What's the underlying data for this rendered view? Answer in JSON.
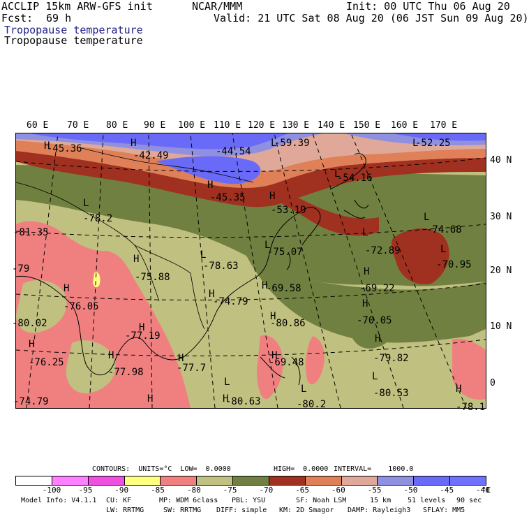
{
  "header": {
    "model": "ACCLIP 15km ARW-GFS init",
    "org": "NCAR/MMM",
    "init": "Init: 00 UTC Thu 06 Aug 20",
    "fcst_label": "Fcst:",
    "fcst_value": "69 h",
    "valid": "Valid: 21 UTC Sat 08 Aug 20 (06 JST Sun 09 Aug 20)",
    "field_title": "Tropopause temperature",
    "field_subtitle": "Tropopause temperature"
  },
  "axes": {
    "lon_labels": [
      "60 E",
      "70 E",
      "80 E",
      "90 E",
      "100 E",
      "110 E",
      "120 E",
      "130 E",
      "140 E",
      "150 E",
      "160 E",
      "170 E"
    ],
    "lat_labels": [
      "40 N",
      "30 N",
      "20 N",
      "10 N",
      "0"
    ]
  },
  "map_labels": [
    {
      "text": "H",
      "kind": "H"
    },
    {
      "text": "-45.36",
      "kind": "v"
    },
    {
      "text": "H",
      "kind": "H"
    },
    {
      "text": "-42.49",
      "kind": "v"
    },
    {
      "text": "-44.54",
      "kind": "v"
    },
    {
      "text": "L",
      "kind": "L"
    },
    {
      "text": "-59.39",
      "kind": "v"
    },
    {
      "text": "L",
      "kind": "L"
    },
    {
      "text": "-52.25",
      "kind": "v"
    },
    {
      "text": "H",
      "kind": "H"
    },
    {
      "text": "-45.35",
      "kind": "v"
    },
    {
      "text": "L",
      "kind": "L"
    },
    {
      "text": "-54.16",
      "kind": "v"
    },
    {
      "text": "H",
      "kind": "H"
    },
    {
      "text": "-53.19",
      "kind": "v"
    },
    {
      "text": "L",
      "kind": "L"
    },
    {
      "text": "-78.2",
      "kind": "v"
    },
    {
      "text": "-81.35",
      "kind": "v"
    },
    {
      "text": "L",
      "kind": "L"
    },
    {
      "text": "-74.68",
      "kind": "v"
    },
    {
      "text": "L",
      "kind": "L"
    },
    {
      "text": "-75.07",
      "kind": "v"
    },
    {
      "text": "L",
      "kind": "L"
    },
    {
      "text": "-72.89",
      "kind": "v"
    },
    {
      "text": "L",
      "kind": "L"
    },
    {
      "text": "-70.95",
      "kind": "v"
    },
    {
      "text": "-79",
      "kind": "v"
    },
    {
      "text": "H",
      "kind": "H"
    },
    {
      "text": "-75.88",
      "kind": "v"
    },
    {
      "text": "L",
      "kind": "L"
    },
    {
      "text": "-78.63",
      "kind": "v"
    },
    {
      "text": "H",
      "kind": "H"
    },
    {
      "text": "-69.58",
      "kind": "v"
    },
    {
      "text": "H",
      "kind": "H"
    },
    {
      "text": "-69.22",
      "kind": "v"
    },
    {
      "text": "H",
      "kind": "H"
    },
    {
      "text": "-76.05",
      "kind": "v"
    },
    {
      "text": "H",
      "kind": "H"
    },
    {
      "text": "-74.79",
      "kind": "v"
    },
    {
      "text": "H",
      "kind": "H"
    },
    {
      "text": "-70.05",
      "kind": "v"
    },
    {
      "text": "H",
      "kind": "H"
    },
    {
      "text": "-80.86",
      "kind": "v"
    },
    {
      "text": "-80.02",
      "kind": "v"
    },
    {
      "text": "H",
      "kind": "H"
    },
    {
      "text": "-77.19",
      "kind": "v"
    },
    {
      "text": "H",
      "kind": "H"
    },
    {
      "text": "-76.25",
      "kind": "v"
    },
    {
      "text": "H",
      "kind": "H"
    },
    {
      "text": "-79.82",
      "kind": "v"
    },
    {
      "text": "H",
      "kind": "H"
    },
    {
      "text": "-77.98",
      "kind": "v"
    },
    {
      "text": "H",
      "kind": "H"
    },
    {
      "text": "-77.7",
      "kind": "v"
    },
    {
      "text": "H",
      "kind": "H"
    },
    {
      "text": "-69.48",
      "kind": "v"
    },
    {
      "text": "L",
      "kind": "L"
    },
    {
      "text": "-80.53",
      "kind": "v"
    },
    {
      "text": "-74.79",
      "kind": "v"
    },
    {
      "text": "H",
      "kind": "H"
    },
    {
      "text": "H",
      "kind": "H"
    },
    {
      "text": "L",
      "kind": "L"
    },
    {
      "text": "-80.63",
      "kind": "v"
    },
    {
      "text": "L",
      "kind": "L"
    },
    {
      "text": "-80.2",
      "kind": "v"
    },
    {
      "text": "H",
      "kind": "H"
    },
    {
      "text": "-78.1",
      "kind": "v"
    }
  ],
  "contours": {
    "units_line": "CONTOURS:  UNITS=°C  LOW=  0.0000",
    "high": "HIGH=  0.0000",
    "interval": "INTERVAL=    1000.0"
  },
  "colorbar": {
    "colors": [
      "#ffffff",
      "#ff80ff",
      "#f050e0",
      "#ffff80",
      "#f08080",
      "#c0c080",
      "#708040",
      "#a03020",
      "#e08058",
      "#e0a898",
      "#9090e0",
      "#6a6af8",
      "#7070ff"
    ],
    "ticks": [
      "-100",
      "-95",
      "-90",
      "-85",
      "-80",
      "-75",
      "-70",
      "-65",
      "-60",
      "-55",
      "-50",
      "-45",
      "-40"
    ],
    "unit": "°C"
  },
  "model_info": {
    "line1": [
      "Model Info: V4.1.1",
      "CU: KF",
      "MP: WDM 6class",
      "PBL: YSU",
      "SF: Noah LSM",
      "15 km",
      "51 levels",
      "90 sec"
    ],
    "line2": [
      "LW: RRTMG",
      "SW: RRTMG",
      "DIFF: simple",
      "KM: 2D Smagor",
      "DAMP: Rayleigh3",
      "SFLAY: MM5"
    ]
  }
}
